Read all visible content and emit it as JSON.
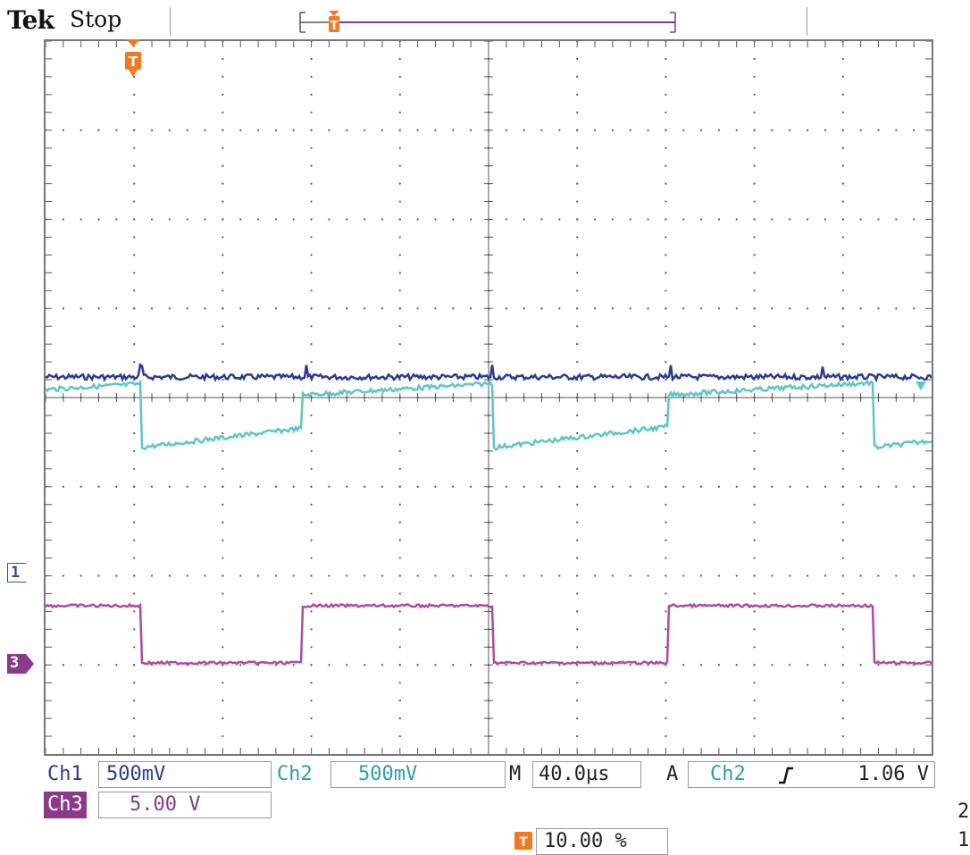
{
  "header": {
    "brand": "Tek",
    "status": "Stop"
  },
  "markers": {
    "ch1": "1",
    "ch3": "3",
    "trigger": "T"
  },
  "readouts": {
    "ch1": {
      "label": "Ch1",
      "value": "500mV"
    },
    "ch2": {
      "label": "Ch2",
      "value": "500mV"
    },
    "ch3": {
      "label": "Ch3",
      "value": "5.00 V"
    },
    "timebase": {
      "label": "M",
      "value": "40.0µs"
    },
    "trigger": {
      "label": "A",
      "source": "Ch2",
      "level": "1.06 V"
    },
    "trigger_position": {
      "value": "10.00 %"
    }
  },
  "edge_digits": [
    "2",
    "1"
  ],
  "colors": {
    "ch1": "#2c3a96",
    "ch2": "#5ec6c6",
    "ch3": "#b04aa0",
    "trigger": "#f07a22",
    "grid": "#555555"
  },
  "icons": {
    "slope": "rising-edge-icon",
    "trigger_marker": "trigger-t-icon"
  }
}
